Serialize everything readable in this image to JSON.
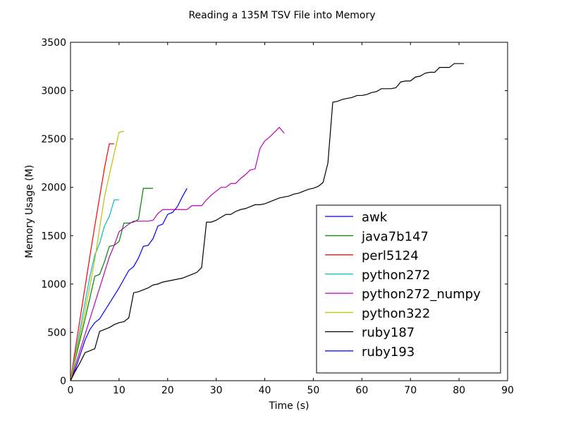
{
  "chart_data": {
    "type": "line",
    "title": "Reading a 135M TSV File into Memory",
    "xlabel": "Time (s)",
    "ylabel": "Memory Usage (M)",
    "xlim": [
      0,
      90
    ],
    "ylim": [
      0,
      3500
    ],
    "x_ticks": [
      0,
      10,
      20,
      30,
      40,
      50,
      60,
      70,
      80,
      90
    ],
    "y_ticks": [
      0,
      500,
      1000,
      1500,
      2000,
      2500,
      3000,
      3500
    ],
    "grid": false,
    "legend_position": "lower-right",
    "series": [
      {
        "name": "awk",
        "color": "#0000ff",
        "x": [
          0,
          1,
          2,
          3,
          4,
          5,
          6,
          7,
          8,
          9,
          10,
          11,
          12,
          13,
          14,
          15,
          16,
          17,
          18,
          19,
          20,
          21,
          22,
          23,
          24
        ],
        "y": [
          0,
          120,
          270,
          420,
          530,
          600,
          640,
          720,
          800,
          880,
          960,
          1050,
          1140,
          1180,
          1270,
          1390,
          1400,
          1470,
          1600,
          1620,
          1720,
          1740,
          1800,
          1900,
          1990
        ]
      },
      {
        "name": "java7b147",
        "color": "#008000",
        "x": [
          0,
          1,
          2,
          3,
          4,
          5,
          6,
          7,
          8,
          9,
          10,
          11,
          12,
          13,
          14,
          15,
          16,
          17
        ],
        "y": [
          0,
          220,
          430,
          640,
          860,
          1080,
          1100,
          1230,
          1390,
          1400,
          1440,
          1630,
          1630,
          1640,
          1670,
          1990,
          1990,
          1990
        ]
      },
      {
        "name": "perl5124",
        "color": "#ff0000",
        "x": [
          0,
          1,
          2,
          3,
          4,
          5,
          6,
          7,
          8,
          9
        ],
        "y": [
          0,
          330,
          650,
          970,
          1290,
          1600,
          1900,
          2200,
          2450,
          2450
        ]
      },
      {
        "name": "python272",
        "color": "#00bfbf",
        "x": [
          0,
          1,
          2,
          3,
          4,
          5,
          6,
          7,
          8,
          9,
          10
        ],
        "y": [
          0,
          270,
          540,
          810,
          1080,
          1300,
          1420,
          1600,
          1700,
          1870,
          1870
        ]
      },
      {
        "name": "python272_numpy",
        "color": "#bf00bf",
        "x": [
          0,
          1,
          2,
          3,
          4,
          5,
          6,
          7,
          8,
          9,
          10,
          11,
          12,
          13,
          14,
          15,
          16,
          17,
          18,
          19,
          20,
          21,
          22,
          23,
          24,
          25,
          26,
          27,
          28,
          29,
          30,
          31,
          32,
          33,
          34,
          35,
          36,
          37,
          38,
          39,
          40,
          41,
          42,
          43,
          44
        ],
        "y": [
          0,
          160,
          320,
          480,
          640,
          800,
          960,
          1120,
          1280,
          1400,
          1540,
          1580,
          1620,
          1650,
          1650,
          1650,
          1650,
          1660,
          1730,
          1770,
          1770,
          1770,
          1770,
          1770,
          1770,
          1810,
          1810,
          1810,
          1870,
          1920,
          1960,
          2000,
          2000,
          2040,
          2040,
          2090,
          2130,
          2180,
          2190,
          2400,
          2480,
          2520,
          2570,
          2620,
          2560
        ]
      },
      {
        "name": "python322",
        "color": "#bfbf00",
        "x": [
          0,
          1,
          2,
          3,
          4,
          5,
          6,
          7,
          8,
          9,
          10,
          11
        ],
        "y": [
          0,
          240,
          480,
          720,
          980,
          1250,
          1580,
          1900,
          2130,
          2350,
          2570,
          2580
        ]
      },
      {
        "name": "ruby187",
        "color": "#000000",
        "x": [
          0,
          1,
          2,
          3,
          4,
          5,
          6,
          7,
          8,
          9,
          10,
          11,
          12,
          13,
          14,
          15,
          16,
          17,
          18,
          19,
          20,
          21,
          22,
          23,
          24,
          25,
          26,
          27,
          28,
          29,
          30,
          31,
          32,
          33,
          34,
          35,
          36,
          37,
          38,
          39,
          40,
          41,
          42,
          43,
          44,
          45,
          46,
          47,
          48,
          49,
          50,
          51,
          52,
          53,
          54,
          55,
          56,
          57,
          58,
          59,
          60,
          61,
          62,
          63,
          64,
          65,
          66,
          67,
          68,
          69,
          70,
          71,
          72,
          73,
          74,
          75,
          76,
          77,
          78,
          79,
          80,
          81
        ],
        "y": [
          0,
          100,
          190,
          290,
          310,
          330,
          510,
          530,
          550,
          580,
          600,
          610,
          650,
          910,
          920,
          940,
          960,
          990,
          1000,
          1020,
          1030,
          1040,
          1050,
          1060,
          1080,
          1100,
          1120,
          1170,
          1640,
          1640,
          1660,
          1690,
          1720,
          1720,
          1750,
          1770,
          1780,
          1800,
          1820,
          1820,
          1830,
          1850,
          1870,
          1890,
          1900,
          1910,
          1930,
          1940,
          1960,
          1980,
          1990,
          2010,
          2050,
          2250,
          2880,
          2890,
          2910,
          2920,
          2930,
          2950,
          2950,
          2960,
          2980,
          2990,
          3020,
          3020,
          3020,
          3030,
          3090,
          3100,
          3100,
          3140,
          3150,
          3180,
          3190,
          3190,
          3240,
          3240,
          3240,
          3280,
          3280,
          3280
        ]
      },
      {
        "name": "ruby193",
        "color": "#0000ff",
        "x": [],
        "y": []
      }
    ]
  }
}
